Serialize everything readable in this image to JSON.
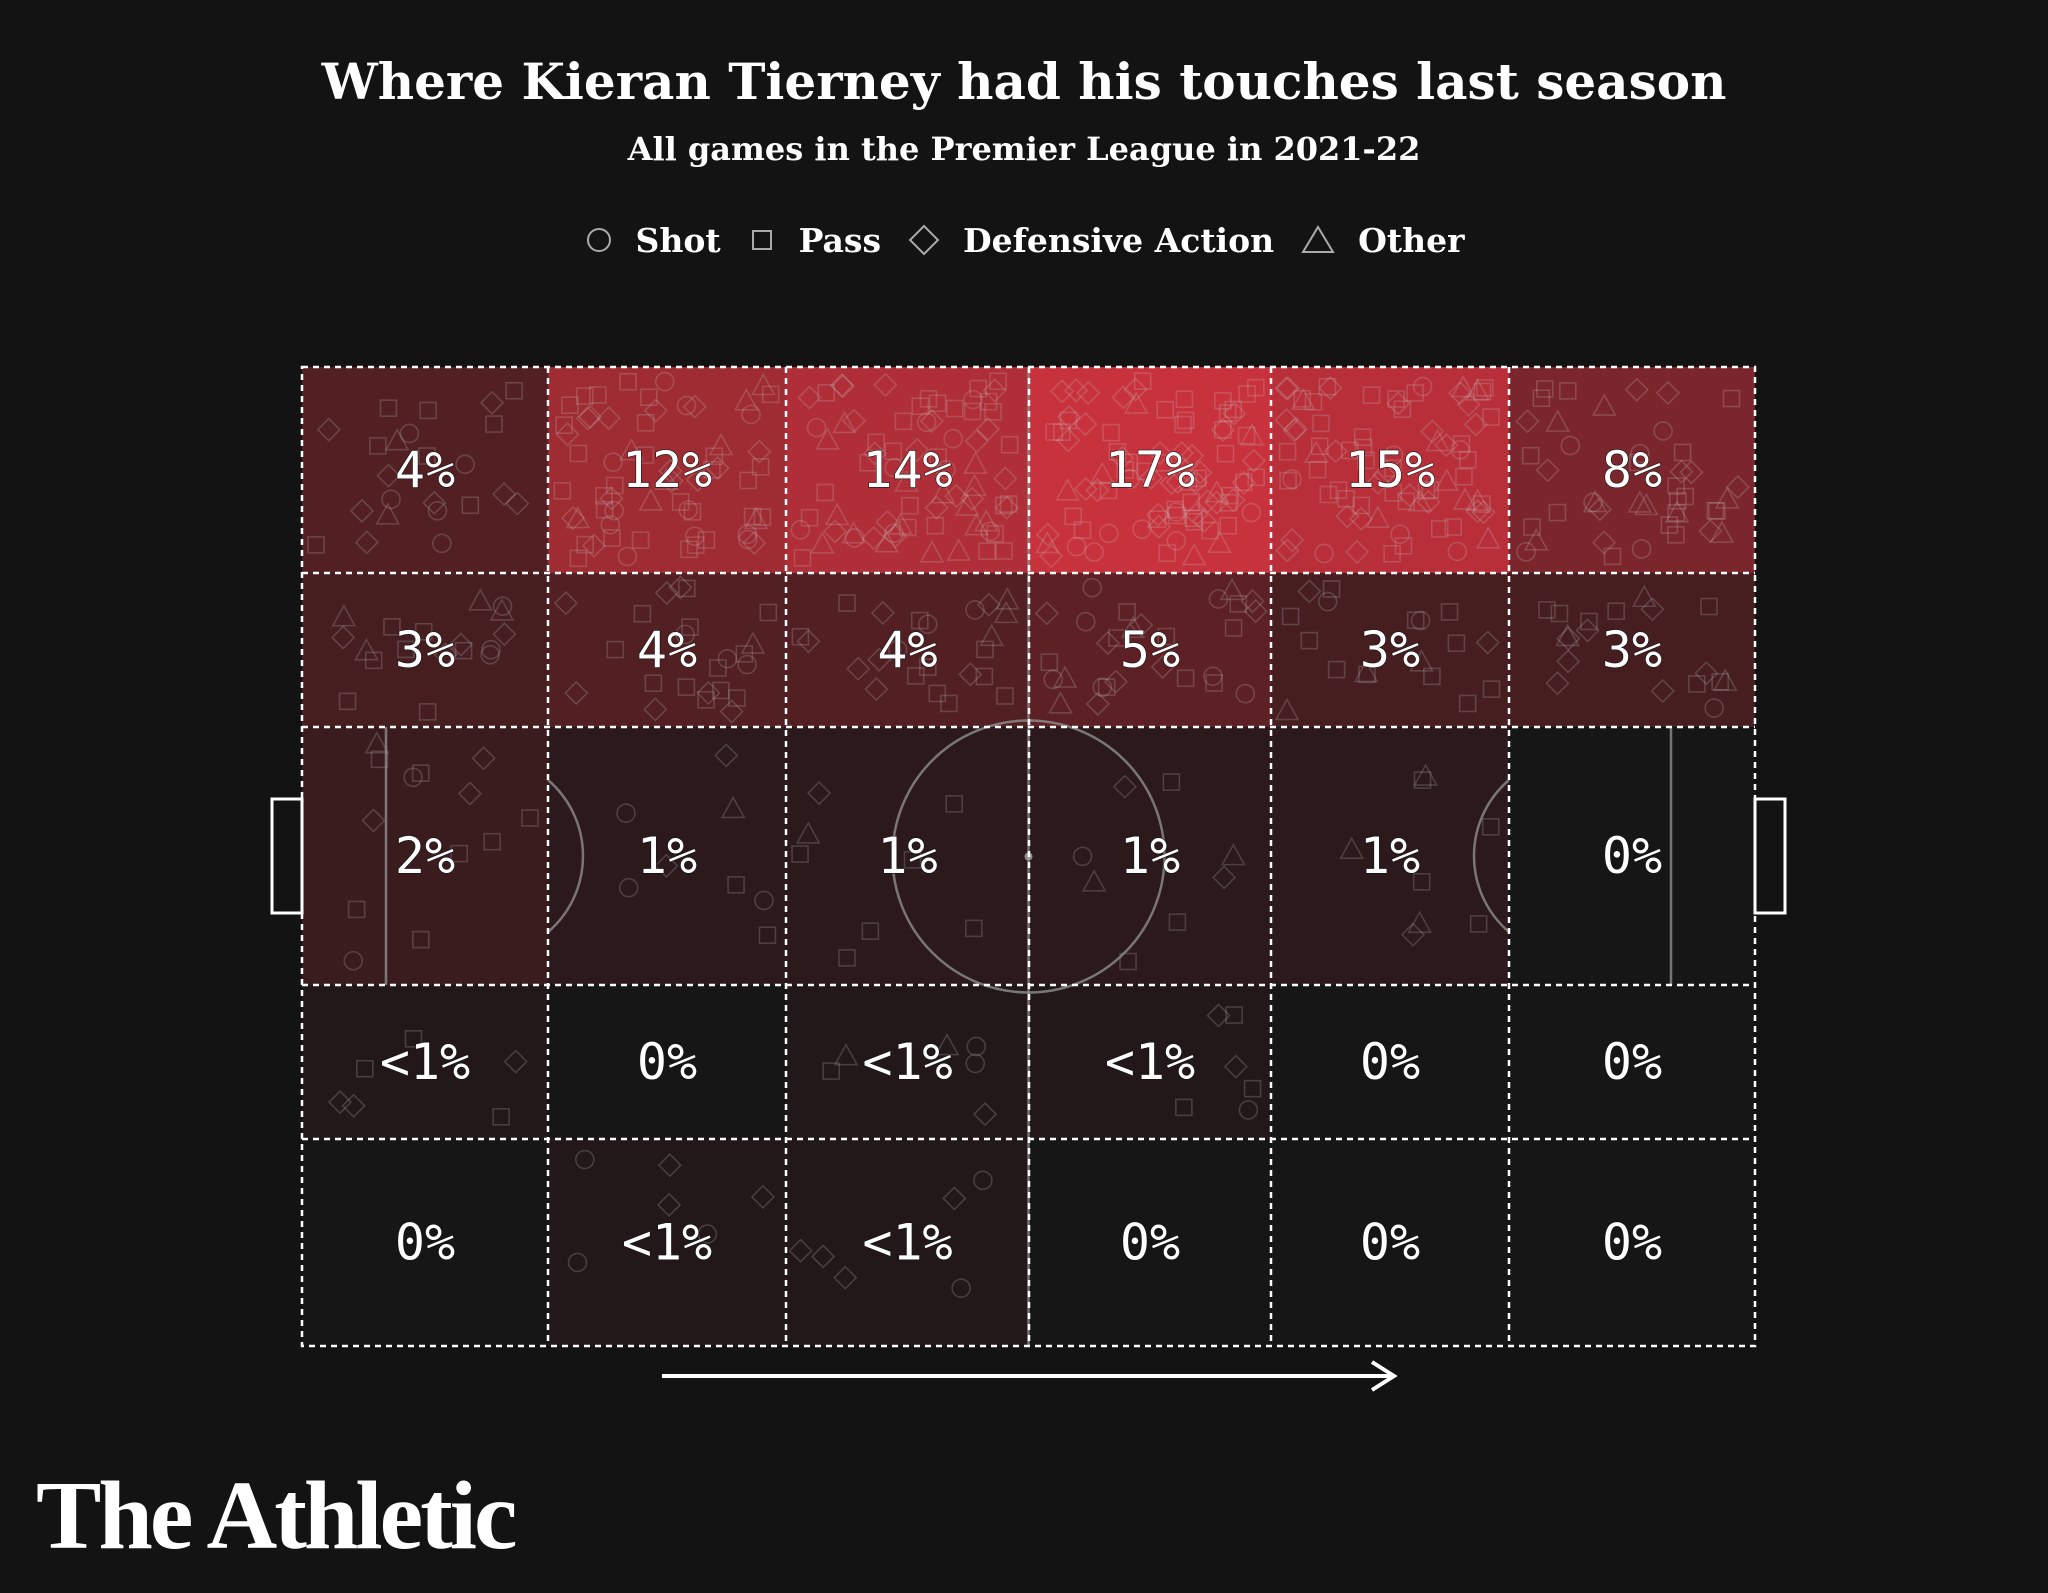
{
  "header": {
    "title": "Where Kieran Tierney had his touches last season",
    "subtitle": "All games in the Premier League in 2021-22"
  },
  "legend": [
    {
      "shape": "circle",
      "label": "Shot"
    },
    {
      "shape": "square",
      "label": "Pass"
    },
    {
      "shape": "diamond",
      "label": "Defensive Action"
    },
    {
      "shape": "triangle",
      "label": "Other"
    }
  ],
  "chart_data": {
    "type": "heatmap",
    "grid": {
      "rows": 5,
      "cols": 6
    },
    "cells": [
      [
        "4%",
        "12%",
        "14%",
        "17%",
        "15%",
        "8%"
      ],
      [
        "3%",
        "4%",
        "4%",
        "5%",
        "3%",
        "3%"
      ],
      [
        "2%",
        "1%",
        "1%",
        "1%",
        "1%",
        "0%"
      ],
      [
        "<1%",
        "0%",
        "<1%",
        "<1%",
        "0%",
        "0%"
      ],
      [
        "0%",
        "<1%",
        "<1%",
        "0%",
        "0%",
        "0%"
      ]
    ],
    "values": [
      [
        4,
        12,
        14,
        17,
        15,
        8
      ],
      [
        3,
        4,
        4,
        5,
        3,
        3
      ],
      [
        2,
        1,
        1,
        1,
        1,
        0
      ],
      [
        0.5,
        0,
        0.5,
        0.5,
        0,
        0
      ],
      [
        0,
        0.5,
        0.5,
        0,
        0,
        0
      ]
    ],
    "attack_direction": "left-to-right",
    "colors": {
      "high": "#c8323c",
      "low": "#161616"
    }
  },
  "brand": {
    "name": "The Athletic"
  }
}
